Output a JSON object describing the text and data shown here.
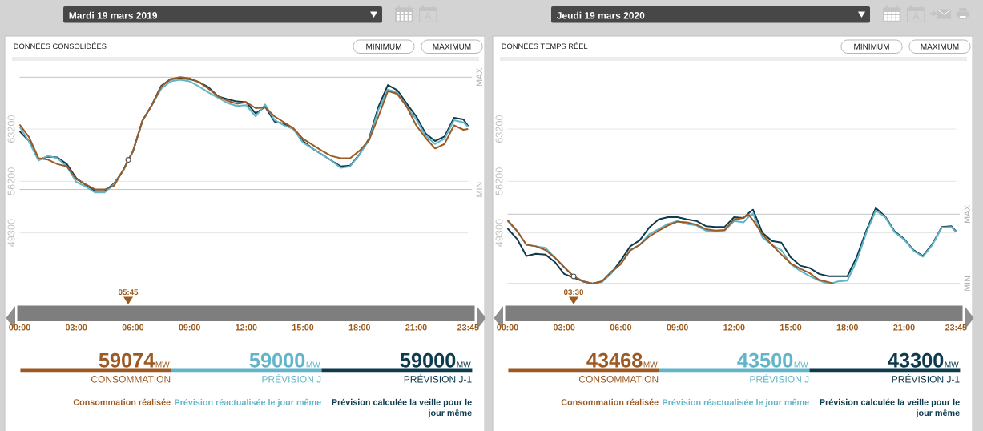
{
  "chart_data": [
    {
      "type": "line",
      "subtitle": "Mardi 19 mars 2019",
      "title": "DONNÉES CONSOLIDÉES",
      "x": [
        0,
        0.5,
        1,
        1.5,
        2,
        2.5,
        3,
        3.5,
        4,
        4.5,
        5,
        5.5,
        5.75,
        6,
        6.5,
        7,
        7.5,
        8,
        8.5,
        9,
        9.5,
        10,
        10.5,
        11,
        11.5,
        12,
        12.5,
        13,
        13.5,
        14,
        14.5,
        15,
        15.5,
        16,
        16.5,
        17,
        17.5,
        18,
        18.5,
        19,
        19.5,
        20,
        20.5,
        21,
        21.5,
        22,
        22.5,
        23,
        23.5,
        23.75
      ],
      "series": [
        {
          "name": "CONSOMMATION",
          "color": "#9b5a24",
          "values": [
            63800,
            62100,
            59300,
            59100,
            58500,
            58200,
            56500,
            55800,
            55100,
            55100,
            55600,
            57800,
            59074,
            60200,
            64300,
            66400,
            68900,
            69900,
            70150,
            70000,
            69500,
            68600,
            67600,
            67000,
            66600,
            66800,
            66000,
            66100,
            64900,
            64100,
            63300,
            61900,
            61100,
            60300,
            59600,
            59300,
            59300,
            60300,
            61700,
            64900,
            68300,
            67900,
            66200,
            63700,
            62000,
            60600,
            61200,
            63700,
            63100,
            63200
          ]
        },
        {
          "name": "PRÉVISION J",
          "color": "#62b5c9",
          "values": [
            63500,
            61500,
            59000,
            59600,
            59300,
            58200,
            56100,
            55500,
            54700,
            54700,
            55800,
            57700,
            59000,
            60200,
            64300,
            66400,
            68600,
            69600,
            69800,
            69600,
            68900,
            68100,
            67400,
            66700,
            66300,
            66400,
            64900,
            66500,
            64400,
            63700,
            63200,
            61400,
            60600,
            59800,
            59000,
            58000,
            58200,
            59800,
            61700,
            65800,
            68500,
            68100,
            66200,
            64500,
            62300,
            61200,
            61900,
            64400,
            64100,
            63500
          ]
        },
        {
          "name": "PRÉVISION J-1",
          "color": "#0e3a4e",
          "values": [
            62900,
            61600,
            59100,
            59500,
            59400,
            58500,
            56600,
            55700,
            54900,
            54900,
            55900,
            57700,
            59000,
            60200,
            64300,
            66400,
            69000,
            69900,
            70000,
            69900,
            69500,
            68800,
            67600,
            67200,
            66900,
            66800,
            65300,
            66200,
            64200,
            63900,
            63200,
            61600,
            60600,
            59800,
            59000,
            58200,
            58300,
            59800,
            61900,
            66200,
            69100,
            68400,
            66600,
            64900,
            62600,
            61600,
            62200,
            64700,
            64500,
            63600
          ]
        },
        {
          "type": "scatter",
          "color": "#555555",
          "x": [
            5.75
          ],
          "values": [
            59074
          ]
        }
      ],
      "xlim": [
        0,
        23.75
      ],
      "xticks": [
        {
          "value": 0,
          "label": "00:00"
        },
        {
          "value": 3,
          "label": "03:00"
        },
        {
          "value": 6,
          "label": "06:00"
        },
        {
          "value": 9,
          "label": "09:00"
        },
        {
          "value": 12,
          "label": "12:00"
        },
        {
          "value": 15,
          "label": "15:00"
        },
        {
          "value": 18,
          "label": "18:00"
        },
        {
          "value": 21,
          "label": "21:00"
        },
        {
          "value": 23.75,
          "label": "23:45"
        }
      ],
      "ylim": [
        38500,
        72600
      ],
      "yticks": [
        49300,
        56200,
        63200
      ],
      "grid": "y",
      "legend": "bottom",
      "ref_lines": [
        {
          "axis": "y",
          "value": 70150,
          "label": "MAX",
          "color": "#c4c4c4"
        },
        {
          "axis": "y",
          "value": 55100,
          "label": "MIN",
          "color": "#c4c4c4"
        }
      ],
      "annotations": [
        "05:45",
        "MINIMUM",
        "MAXIMUM",
        "59074",
        "59000",
        "59000",
        "MW",
        "MW",
        "MW",
        "Consommation réalisée",
        "Prévision réactualisée le jour même",
        "Prévision calculée la veille pour le jour même"
      ]
    },
    {
      "type": "line",
      "subtitle": "Jeudi 19 mars 2020",
      "title": "DONNÉES TEMPS RÉEL",
      "x": [
        0,
        0.5,
        1,
        1.5,
        2,
        2.5,
        3,
        3.5,
        4,
        4.5,
        5,
        5.5,
        6,
        6.5,
        7,
        7.5,
        8,
        8.5,
        9,
        9.5,
        10,
        10.5,
        11,
        11.5,
        12,
        12.5,
        12.75,
        13,
        13.5,
        14,
        14.5,
        15,
        15.5,
        16,
        16.5,
        17,
        17.25,
        17.5,
        18,
        18.5,
        19,
        19.5,
        20,
        20.5,
        21,
        21.5,
        22,
        22.5,
        23,
        23.5,
        23.75
      ],
      "series": [
        {
          "name": "CONSOMMATION",
          "color": "#9b5a24",
          "values": [
            51000,
            49600,
            47700,
            47500,
            47000,
            46000,
            44700,
            43468,
            42800,
            42500,
            42800,
            44100,
            45100,
            47000,
            47700,
            48800,
            49600,
            50300,
            50800,
            50700,
            50400,
            49800,
            49600,
            49700,
            51100,
            51300,
            51800,
            51000,
            49100,
            47700,
            46400,
            45200,
            44500,
            43900,
            43000,
            42700,
            42500,
            null,
            null,
            null,
            null,
            null,
            null,
            null,
            null,
            null,
            null,
            null,
            null,
            null,
            null
          ]
        },
        {
          "name": "PRÉVISION J",
          "color": "#62b5c9",
          "values": [
            50900,
            49500,
            47700,
            47500,
            47300,
            46000,
            44700,
            43500,
            42800,
            42500,
            42700,
            43900,
            45200,
            46900,
            47700,
            49100,
            49800,
            50500,
            50900,
            50500,
            50300,
            49600,
            49500,
            49600,
            50900,
            50700,
            51400,
            51900,
            48700,
            47700,
            47000,
            45100,
            44200,
            43500,
            42900,
            42500,
            42600,
            42800,
            42900,
            45600,
            49300,
            52300,
            51400,
            49400,
            48400,
            46900,
            46100,
            47700,
            50000,
            50100,
            49400
          ]
        },
        {
          "name": "PRÉVISION J-1",
          "color": "#0e3a4e",
          "values": [
            49900,
            48500,
            46200,
            46500,
            46400,
            45400,
            43800,
            43300,
            42800,
            42500,
            42800,
            43900,
            45600,
            47500,
            48300,
            50000,
            51100,
            51400,
            51400,
            51100,
            50900,
            50200,
            50100,
            50100,
            51400,
            51300,
            51900,
            52400,
            49300,
            48200,
            48000,
            46000,
            44900,
            44600,
            43800,
            43500,
            43500,
            43500,
            43500,
            46100,
            49600,
            52600,
            51500,
            49500,
            48500,
            47000,
            46200,
            47800,
            50100,
            50200,
            49500
          ]
        },
        {
          "type": "scatter",
          "color": "#555555",
          "x": [
            3.5
          ],
          "values": [
            43468
          ]
        }
      ],
      "xlim": [
        0,
        23.75
      ],
      "xticks": [
        {
          "value": 0,
          "label": "00:00"
        },
        {
          "value": 3,
          "label": "03:00"
        },
        {
          "value": 6,
          "label": "06:00"
        },
        {
          "value": 9,
          "label": "09:00"
        },
        {
          "value": 12,
          "label": "12:00"
        },
        {
          "value": 15,
          "label": "15:00"
        },
        {
          "value": 18,
          "label": "18:00"
        },
        {
          "value": 21,
          "label": "21:00"
        },
        {
          "value": 23.75,
          "label": "23:45"
        }
      ],
      "ylim": [
        38500,
        72600
      ],
      "yticks": [
        49300,
        56200,
        63200
      ],
      "grid": "y",
      "legend": "bottom",
      "ref_lines": [
        {
          "axis": "y",
          "value": 51800,
          "label": "MAX",
          "color": "#c4c4c4"
        },
        {
          "axis": "y",
          "value": 42500,
          "label": "MIN",
          "color": "#c4c4c4"
        }
      ],
      "annotations": [
        "03:30",
        "MINIMUM",
        "MAXIMUM",
        "43468",
        "43500",
        "43300",
        "MW",
        "MW",
        "MW",
        "Consommation réalisée",
        "Prévision réactualisée le jour même",
        "Prévision calculée la veille pour le jour même"
      ]
    }
  ]
}
